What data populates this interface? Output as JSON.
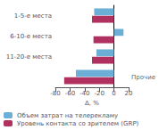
{
  "chart_data": {
    "type": "bar",
    "orientation": "horizontal",
    "categories": [
      "1-5-е места",
      "6-10-е места",
      "11-20-е места",
      null
    ],
    "series": [
      {
        "name": "Объем затрат на телерекламу",
        "color": "#6baed6",
        "values": [
          -27,
          13,
          -24,
          -52
        ]
      },
      {
        "name": "Уровень контакта со зрителем (GRP)",
        "color": "#b03060",
        "values": [
          -30,
          -28,
          -30,
          -68
        ]
      }
    ],
    "xlabel": "Δ, %",
    "xlim": [
      -80,
      20
    ],
    "xticks": [
      -80,
      -60,
      -40,
      -20,
      0,
      20
    ],
    "annotations": [
      "Прочие"
    ],
    "grid": false,
    "legend": "lower left"
  }
}
